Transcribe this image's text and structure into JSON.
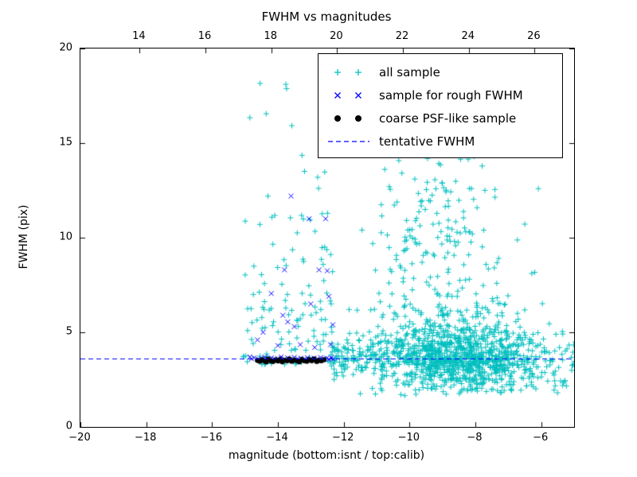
{
  "chart_data": {
    "type": "scatter",
    "title": "FWHM vs magnitudes",
    "xlabel": "magnitude (bottom:isnt / top:calib)",
    "ylabel": "FWHM (pix)",
    "xlim": [
      -20,
      -5
    ],
    "ylim": [
      0,
      20
    ],
    "grid": false,
    "legend_position": "upper center-right",
    "top_axis_offset": 32.2,
    "x_ticks": {
      "values": [
        -20,
        -18,
        -16,
        -14,
        -12,
        -10,
        -8,
        -6
      ],
      "labels": [
        "−20",
        "−18",
        "−16",
        "−14",
        "−12",
        "−10",
        "−8",
        "−6"
      ]
    },
    "top_ticks": {
      "values": [
        14,
        16,
        18,
        20,
        22,
        24,
        26
      ],
      "labels": [
        "14",
        "16",
        "18",
        "20",
        "22",
        "24",
        "26"
      ]
    },
    "y_ticks": {
      "values": [
        0,
        5,
        10,
        15,
        20
      ],
      "labels": [
        "0",
        "5",
        "10",
        "15",
        "20"
      ]
    },
    "tentative_fwhm": 3.6,
    "colors": {
      "all_sample": "#00bfbf",
      "rough_sample": "#0000ff",
      "psf_sample": "#000000",
      "tentative_line": "#0000ff"
    },
    "legend": [
      {
        "label": "all sample",
        "marker": "plus",
        "color": "#00bfbf"
      },
      {
        "label": "sample for rough FWHM",
        "marker": "cross",
        "color": "#0000ff"
      },
      {
        "label": "coarse PSF-like sample",
        "marker": "dot",
        "color": "#000000"
      },
      {
        "label": "tentative FWHM",
        "marker": "dashed-line",
        "color": "#0000ff"
      }
    ],
    "series": [
      {
        "name": "all sample",
        "marker": "plus",
        "color": "#00bfbf",
        "generator": {
          "seed": 123456,
          "clusters": [
            {
              "n": 750,
              "x": {
                "dist": "normal",
                "mean": -8.2,
                "sigma": 1.1,
                "min": -11.0,
                "max": -5.1
              },
              "y": {
                "dist": "normal",
                "mean": 3.5,
                "sigma": 0.8,
                "min": 1.7,
                "max": 6.2
              }
            },
            {
              "n": 260,
              "x": {
                "dist": "uniform",
                "min": -12.4,
                "max": -9.0
              },
              "y": {
                "dist": "normal",
                "mean": 3.7,
                "sigma": 0.6,
                "min": 2.4,
                "max": 5.6
              }
            },
            {
              "n": 320,
              "x": {
                "dist": "normal",
                "mean": -9.0,
                "sigma": 1.3,
                "min": -12.0,
                "max": -5.5
              },
              "y": {
                "dist": "exp",
                "scale": 2.2,
                "min": 4.2,
                "max": 13.5
              }
            },
            {
              "n": 90,
              "x": {
                "dist": "normal",
                "mean": -9.3,
                "sigma": 0.9,
                "min": -11.3,
                "max": -7.2
              },
              "y": {
                "dist": "uniform",
                "min": 9.0,
                "max": 15.7
              }
            },
            {
              "n": 130,
              "x": {
                "dist": "uniform",
                "min": -15.05,
                "max": -12.3
              },
              "y": {
                "dist": "exp",
                "scale": 3.4,
                "min": 3.3,
                "max": 19.4
              }
            },
            {
              "n": 55,
              "x": {
                "dist": "uniform",
                "min": -6.6,
                "max": -4.95
              },
              "y": {
                "dist": "normal",
                "mean": 3.5,
                "sigma": 1.0,
                "min": 1.9,
                "max": 7.0
              }
            },
            {
              "n": 45,
              "x": {
                "dist": "uniform",
                "min": -11.5,
                "max": -5.2
              },
              "y": {
                "dist": "uniform",
                "min": 1.6,
                "max": 2.6
              }
            }
          ]
        }
      },
      {
        "name": "sample for rough FWHM",
        "marker": "cross",
        "color": "#0000ff",
        "points": [
          [
            -14.85,
            3.7
          ],
          [
            -14.8,
            3.6
          ],
          [
            -14.72,
            3.65
          ],
          [
            -14.6,
            3.58
          ],
          [
            -14.5,
            3.62
          ],
          [
            -14.4,
            3.7
          ],
          [
            -14.3,
            3.6
          ],
          [
            -14.2,
            3.65
          ],
          [
            -14.1,
            3.58
          ],
          [
            -14.0,
            3.62
          ],
          [
            -13.9,
            3.7
          ],
          [
            -13.8,
            3.6
          ],
          [
            -13.7,
            3.65
          ],
          [
            -13.6,
            3.6
          ],
          [
            -13.5,
            3.68
          ],
          [
            -13.4,
            3.6
          ],
          [
            -13.3,
            3.63
          ],
          [
            -13.2,
            3.58
          ],
          [
            -13.1,
            3.66
          ],
          [
            -13.0,
            3.6
          ],
          [
            -12.9,
            3.64
          ],
          [
            -12.8,
            3.6
          ],
          [
            -12.7,
            3.67
          ],
          [
            -12.6,
            3.6
          ],
          [
            -12.52,
            3.63
          ],
          [
            -12.45,
            3.58
          ],
          [
            -12.38,
            3.65
          ],
          [
            -12.32,
            3.6
          ],
          [
            -14.62,
            4.6
          ],
          [
            -14.45,
            5.0
          ],
          [
            -14.2,
            7.05
          ],
          [
            -14.0,
            4.3
          ],
          [
            -13.85,
            5.9
          ],
          [
            -13.8,
            8.3
          ],
          [
            -13.7,
            5.55
          ],
          [
            -13.6,
            12.2
          ],
          [
            -13.5,
            5.3
          ],
          [
            -13.32,
            4.35
          ],
          [
            -13.05,
            11.0
          ],
          [
            -13.0,
            6.5
          ],
          [
            -12.88,
            4.2
          ],
          [
            -12.75,
            8.3
          ],
          [
            -12.55,
            11.0
          ],
          [
            -12.5,
            8.25
          ],
          [
            -12.45,
            6.9
          ],
          [
            -12.4,
            4.35
          ],
          [
            -12.33,
            5.4
          ]
        ]
      },
      {
        "name": "coarse PSF-like sample",
        "marker": "dot",
        "color": "#000000",
        "points": [
          [
            -14.62,
            3.52
          ],
          [
            -14.55,
            3.47
          ],
          [
            -14.48,
            3.55
          ],
          [
            -14.42,
            3.5
          ],
          [
            -14.35,
            3.44
          ],
          [
            -14.3,
            3.58
          ],
          [
            -14.22,
            3.5
          ],
          [
            -14.15,
            3.46
          ],
          [
            -14.08,
            3.54
          ],
          [
            -14.0,
            3.49
          ],
          [
            -13.93,
            3.56
          ],
          [
            -13.87,
            3.45
          ],
          [
            -13.8,
            3.52
          ],
          [
            -13.72,
            3.5
          ],
          [
            -13.65,
            3.58
          ],
          [
            -13.58,
            3.47
          ],
          [
            -13.5,
            3.53
          ],
          [
            -13.42,
            3.5
          ],
          [
            -13.35,
            3.44
          ],
          [
            -13.27,
            3.56
          ],
          [
            -13.2,
            3.5
          ],
          [
            -13.12,
            3.47
          ],
          [
            -13.05,
            3.55
          ],
          [
            -12.97,
            3.5
          ],
          [
            -12.9,
            3.58
          ],
          [
            -12.82,
            3.46
          ],
          [
            -12.75,
            3.52
          ],
          [
            -12.68,
            3.5
          ],
          [
            -12.6,
            3.55
          ]
        ]
      },
      {
        "name": "tentative FWHM",
        "type": "hline",
        "y": 3.6,
        "color": "#0000ff",
        "style": "dashed"
      }
    ]
  }
}
